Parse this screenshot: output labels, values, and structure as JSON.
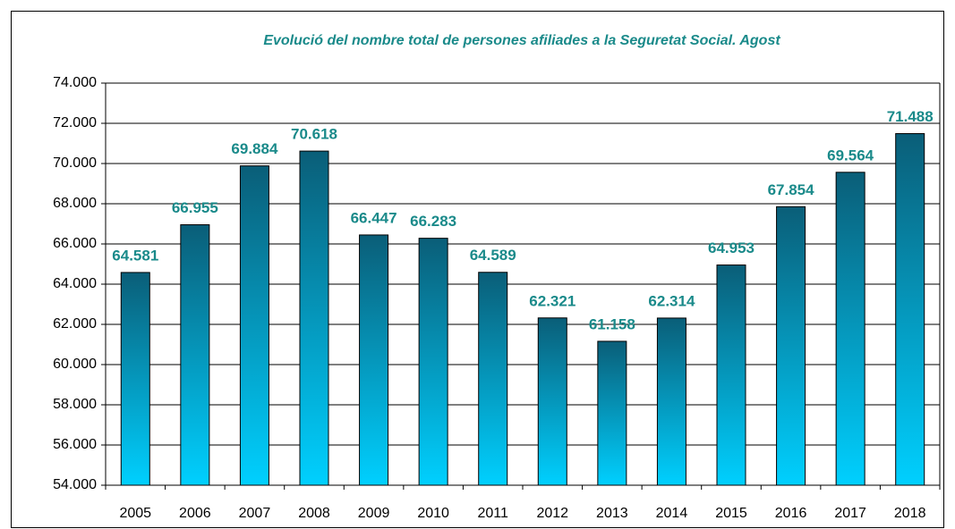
{
  "chart_data": {
    "type": "bar",
    "title": "Evolució del nombre total de persones afiliades a la Seguretat Social. Agost",
    "categories": [
      "2005",
      "2006",
      "2007",
      "2008",
      "2009",
      "2010",
      "2011",
      "2012",
      "2013",
      "2014",
      "2015",
      "2016",
      "2017",
      "2018"
    ],
    "values": [
      64581,
      66955,
      69884,
      70618,
      66447,
      66283,
      64589,
      62321,
      61158,
      62314,
      64953,
      67854,
      69564,
      71488
    ],
    "value_labels": [
      "64.581",
      "66.955",
      "69.884",
      "70.618",
      "66.447",
      "66.283",
      "64.589",
      "62.321",
      "61.158",
      "62.314",
      "64.953",
      "67.854",
      "69.564",
      "71.488"
    ],
    "color": "#0a5e78",
    "gradient_color": "#00d0ff",
    "ylim": [
      54000,
      74000
    ],
    "yticks": [
      {
        "value": 54000,
        "label": "54.000"
      },
      {
        "value": 56000,
        "label": "56.000"
      },
      {
        "value": 58000,
        "label": "58.000"
      },
      {
        "value": 60000,
        "label": "60.000"
      },
      {
        "value": 62000,
        "label": "62.000"
      },
      {
        "value": 64000,
        "label": "64.000"
      },
      {
        "value": 66000,
        "label": "66.000"
      },
      {
        "value": 68000,
        "label": "68.000"
      },
      {
        "value": 70000,
        "label": "70.000"
      },
      {
        "value": 72000,
        "label": "72.000"
      },
      {
        "value": 74000,
        "label": "74.000"
      }
    ],
    "grid": true
  }
}
